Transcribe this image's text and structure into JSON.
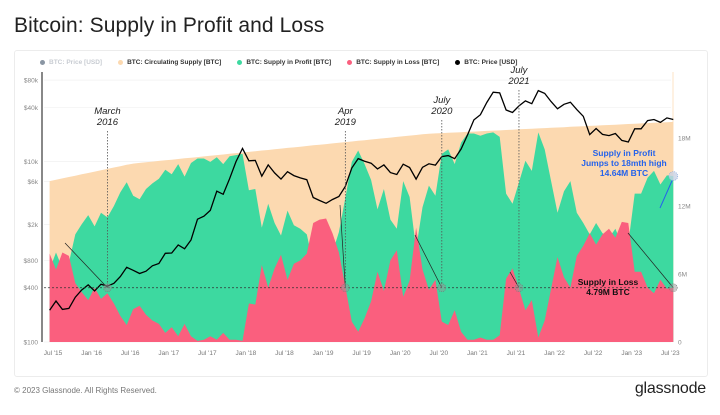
{
  "title": "Bitcoin: Supply in Profit and Loss",
  "legend": [
    {
      "label": "BTC: Price [USD]",
      "color": "#8a96a3",
      "muted": true
    },
    {
      "label": "BTC: Circulating Supply [BTC]",
      "color": "#fcd9b0"
    },
    {
      "label": "BTC: Supply in Profit [BTC]",
      "color": "#3dd9a0"
    },
    {
      "label": "BTC: Supply in Loss [BTC]",
      "color": "#fa5f7e"
    },
    {
      "label": "BTC: Price [USD]",
      "color": "#000000"
    }
  ],
  "footer": "© 2023 Glassnode. All Rights Reserved.",
  "logo": "glassnode",
  "chart_data": {
    "type": "area",
    "title": "Bitcoin: Supply in Profit and Loss",
    "x_ticks": [
      "Jul '15",
      "Jan '16",
      "Jul '16",
      "Jan '17",
      "Jul '17",
      "Jan '18",
      "Jul '18",
      "Jan '19",
      "Jul '19",
      "Jan '20",
      "Jul '20",
      "Jan '21",
      "Jul '21",
      "Jan '22",
      "Jul '22",
      "Jan '23",
      "Jul '23"
    ],
    "y_left": {
      "scale": "log",
      "ticks": [
        "$100",
        "$400",
        "$800",
        "$2k",
        "$6k",
        "$10k",
        "$40k",
        "$80k"
      ],
      "tick_values": [
        100,
        400,
        800,
        2000,
        6000,
        10000,
        40000,
        80000
      ],
      "range": [
        100,
        80000
      ]
    },
    "y_right": {
      "scale": "linear",
      "ticks": [
        "0",
        "6M",
        "12M",
        "18M"
      ],
      "tick_values": [
        0,
        6,
        12,
        18
      ],
      "range": [
        0,
        21.5
      ],
      "unit": "M BTC"
    },
    "grid": true,
    "legend_position": "top-left",
    "dates": [
      "2015-06",
      "2015-07",
      "2015-08",
      "2015-09",
      "2015-10",
      "2015-11",
      "2015-12",
      "2016-01",
      "2016-02",
      "2016-03",
      "2016-04",
      "2016-05",
      "2016-06",
      "2016-07",
      "2016-08",
      "2016-09",
      "2016-10",
      "2016-11",
      "2016-12",
      "2017-01",
      "2017-02",
      "2017-03",
      "2017-04",
      "2017-05",
      "2017-06",
      "2017-07",
      "2017-08",
      "2017-09",
      "2017-10",
      "2017-11",
      "2017-12",
      "2018-01",
      "2018-02",
      "2018-03",
      "2018-04",
      "2018-05",
      "2018-06",
      "2018-07",
      "2018-08",
      "2018-09",
      "2018-10",
      "2018-11",
      "2018-12",
      "2019-01",
      "2019-02",
      "2019-03",
      "2019-04",
      "2019-05",
      "2019-06",
      "2019-07",
      "2019-08",
      "2019-09",
      "2019-10",
      "2019-11",
      "2019-12",
      "2020-01",
      "2020-02",
      "2020-03",
      "2020-04",
      "2020-05",
      "2020-06",
      "2020-07",
      "2020-08",
      "2020-09",
      "2020-10",
      "2020-11",
      "2020-12",
      "2021-01",
      "2021-02",
      "2021-03",
      "2021-04",
      "2021-05",
      "2021-06",
      "2021-07",
      "2021-08",
      "2021-09",
      "2021-10",
      "2021-11",
      "2021-12",
      "2022-01",
      "2022-02",
      "2022-03",
      "2022-04",
      "2022-05",
      "2022-06",
      "2022-07",
      "2022-08",
      "2022-09",
      "2022-10",
      "2022-11",
      "2022-12",
      "2023-01",
      "2023-02",
      "2023-03",
      "2023-04",
      "2023-05",
      "2023-06",
      "2023-07"
    ],
    "series": [
      {
        "name": "BTC: Circulating Supply [BTC]",
        "axis": "right",
        "color": "#fcd9b0",
        "values": [
          14.2,
          14.32,
          14.44,
          14.56,
          14.68,
          14.8,
          14.92,
          15.04,
          15.16,
          15.28,
          15.4,
          15.52,
          15.64,
          15.75,
          15.81,
          15.86,
          15.92,
          15.98,
          16.04,
          16.09,
          16.15,
          16.21,
          16.27,
          16.32,
          16.38,
          16.44,
          16.5,
          16.55,
          16.61,
          16.67,
          16.72,
          16.78,
          16.84,
          16.9,
          16.95,
          17.01,
          17.07,
          17.13,
          17.18,
          17.24,
          17.3,
          17.36,
          17.41,
          17.47,
          17.53,
          17.58,
          17.64,
          17.7,
          17.76,
          17.81,
          17.87,
          17.93,
          17.99,
          18.04,
          18.1,
          18.16,
          18.22,
          18.27,
          18.33,
          18.38,
          18.41,
          18.44,
          18.46,
          18.49,
          18.52,
          18.55,
          18.57,
          18.6,
          18.63,
          18.66,
          18.68,
          18.71,
          18.74,
          18.77,
          18.8,
          18.82,
          18.85,
          18.88,
          18.91,
          18.93,
          18.96,
          18.99,
          19.02,
          19.04,
          19.07,
          19.1,
          19.13,
          19.15,
          19.18,
          19.21,
          19.24,
          19.26,
          19.29,
          19.32,
          19.35,
          19.37,
          19.4,
          19.43
        ]
      },
      {
        "name": "BTC: Supply in Profit [BTC]",
        "axis": "right",
        "color": "#3dd9a0",
        "values": [
          6.4,
          7.9,
          6.5,
          7.0,
          9.5,
          10.4,
          11.2,
          10.2,
          11.4,
          11.0,
          12.0,
          13.2,
          14.1,
          12.9,
          12.6,
          13.5,
          14.0,
          14.4,
          15.2,
          14.8,
          15.7,
          14.6,
          15.8,
          16.2,
          16.2,
          15.9,
          16.3,
          15.7,
          16.4,
          16.5,
          16.6,
          13.4,
          13.5,
          10.1,
          12.2,
          10.5,
          9.4,
          11.6,
          10.3,
          10.0,
          9.5,
          6.9,
          6.6,
          6.6,
          7.9,
          9.7,
          12.7,
          15.9,
          16.9,
          15.7,
          14.3,
          11.7,
          13.5,
          10.8,
          10.0,
          14.2,
          12.8,
          8.2,
          11.9,
          13.8,
          12.9,
          16.6,
          17.0,
          15.7,
          17.6,
          18.4,
          18.4,
          18.2,
          18.4,
          18.5,
          18.1,
          13.1,
          12.2,
          14.1,
          16.0,
          15.1,
          18.5,
          17.0,
          14.2,
          11.4,
          13.3,
          14.2,
          11.4,
          10.5,
          9.5,
          10.5,
          9.6,
          9.2,
          10.0,
          8.6,
          8.7,
          13.1,
          13.1,
          14.5,
          15.1,
          13.9,
          14.7,
          14.64
        ]
      },
      {
        "name": "BTC: Supply in Loss [BTC]",
        "axis": "right",
        "color": "#fa5f7e",
        "values": [
          7.8,
          6.4,
          7.9,
          7.6,
          5.2,
          4.4,
          3.7,
          4.8,
          3.8,
          4.3,
          3.4,
          2.3,
          1.5,
          2.9,
          3.2,
          2.4,
          1.9,
          1.6,
          0.8,
          1.3,
          0.5,
          1.6,
          0.5,
          0.1,
          0.2,
          0.5,
          0.2,
          0.8,
          0.2,
          0.2,
          0.1,
          3.4,
          3.3,
          6.8,
          4.8,
          6.5,
          7.7,
          5.5,
          6.9,
          7.2,
          7.8,
          10.5,
          10.8,
          10.9,
          9.6,
          7.9,
          4.9,
          1.8,
          0.9,
          2.1,
          3.6,
          6.2,
          4.5,
          7.2,
          8.1,
          4.0,
          5.4,
          10.1,
          6.4,
          4.6,
          5.5,
          1.8,
          1.5,
          2.8,
          0.9,
          0.2,
          0.2,
          0.4,
          0.2,
          0.2,
          0.6,
          5.6,
          6.5,
          4.7,
          2.8,
          3.7,
          0.4,
          1.9,
          4.7,
          7.5,
          5.7,
          4.8,
          7.6,
          8.5,
          9.6,
          8.6,
          9.5,
          10.0,
          9.2,
          10.6,
          10.5,
          6.2,
          6.2,
          4.8,
          4.3,
          5.5,
          4.7,
          4.79
        ]
      },
      {
        "name": "BTC: Price [USD]",
        "axis": "left",
        "color": "#000000",
        "values": [
          225,
          285,
          230,
          236,
          314,
          377,
          430,
          368,
          437,
          416,
          448,
          531,
          673,
          624,
          575,
          609,
          700,
          742,
          963,
          970,
          1190,
          1080,
          1350,
          2300,
          2480,
          2875,
          4700,
          4340,
          6470,
          10000,
          14000,
          10200,
          10300,
          6900,
          9200,
          7500,
          6400,
          7730,
          7000,
          6600,
          6300,
          4000,
          3700,
          3450,
          3800,
          4100,
          5300,
          8500,
          10800,
          10100,
          9600,
          8300,
          9200,
          7550,
          7200,
          9350,
          8600,
          6400,
          8650,
          9450,
          9140,
          11350,
          11650,
          10780,
          13800,
          19700,
          29000,
          33100,
          45200,
          58800,
          57700,
          37300,
          35000,
          41500,
          47100,
          43800,
          61300,
          57000,
          46300,
          38500,
          43200,
          45500,
          37700,
          31800,
          19900,
          23300,
          20000,
          19400,
          20500,
          17200,
          16500,
          23100,
          23100,
          28500,
          29300,
          27200,
          30500,
          29300
        ]
      }
    ],
    "reference_line": {
      "value": 4.79,
      "axis": "right",
      "style": "dashed"
    },
    "annotations": [
      {
        "text": [
          "March",
          "2016"
        ],
        "date": "2016-03",
        "color": "#222222"
      },
      {
        "text": [
          "Apr",
          "2019"
        ],
        "date": "2019-04",
        "color": "#222222"
      },
      {
        "text": [
          "July",
          "2020"
        ],
        "date": "2020-07",
        "color": "#222222"
      },
      {
        "text": [
          "July",
          "2021"
        ],
        "date": "2021-07",
        "color": "#222222"
      },
      {
        "text": [
          "Supply in Profit",
          "Jumps to 18mth high",
          "14.64M BTC"
        ],
        "color": "#2563eb"
      },
      {
        "text": [
          "Supply in Loss",
          "4.79M BTC"
        ],
        "color": "#111111"
      }
    ]
  }
}
